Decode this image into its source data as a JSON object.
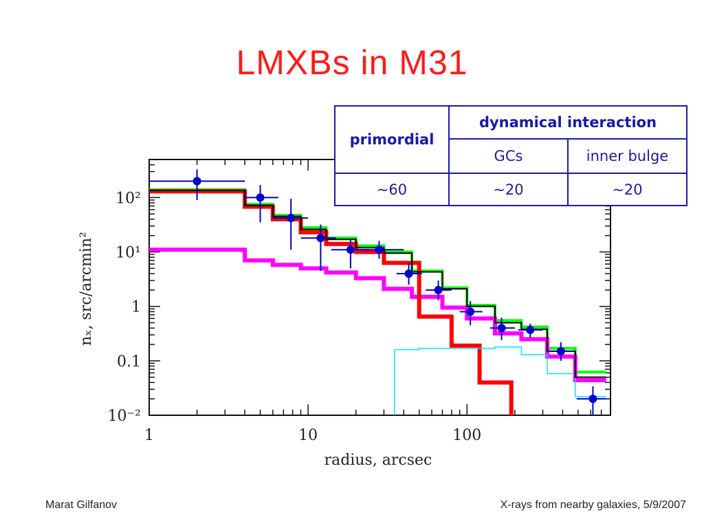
{
  "title": "LMXBs in M31",
  "footer": {
    "author": "Marat Gilfanov",
    "event": "X-rays from nearby galaxies, 5/9/2007"
  },
  "table": {
    "col1_header": "primordial",
    "col2_header": "dynamical interaction",
    "sub_gcs": "GCs",
    "sub_bulge": "inner bulge",
    "val_primordial": "~60",
    "val_gcs": "~20",
    "val_bulge": "~20",
    "colors": {
      "text": "#1a1aa8",
      "border": "#1a1aa8"
    }
  },
  "chart_data": {
    "type": "line",
    "x_scale": "log",
    "y_scale": "log",
    "xlim": [
      1,
      800
    ],
    "ylim": [
      0.01,
      500
    ],
    "xlabel": "radius,  arcsec",
    "ylabel": "nₓ,  src/arcmin²",
    "x_ticks": [
      {
        "value": 1,
        "label": "1"
      },
      {
        "value": 10,
        "label": "10"
      },
      {
        "value": 100,
        "label": "100"
      }
    ],
    "y_ticks": [
      {
        "value": 100,
        "label": "10²"
      },
      {
        "value": 10,
        "label": "10¹"
      },
      {
        "value": 1,
        "label": "1"
      },
      {
        "value": 0.1,
        "label": "0.1"
      },
      {
        "value": 0.01,
        "label": "10⁻²"
      }
    ],
    "series": [
      {
        "style": "step",
        "color": "#00ff00",
        "width": 4,
        "edges": [
          1,
          4,
          6,
          9,
          13,
          20,
          30,
          45,
          70,
          100,
          150,
          220,
          320,
          480,
          750
        ],
        "values": [
          140,
          75,
          47,
          28,
          18,
          13,
          10,
          4.5,
          2.2,
          1.05,
          0.55,
          0.42,
          0.17,
          0.062
        ]
      },
      {
        "style": "step",
        "color": "#ff00ff",
        "width": 6,
        "edges": [
          1,
          4,
          6,
          9,
          13,
          20,
          30,
          45,
          70,
          100,
          150,
          220,
          320,
          480,
          750
        ],
        "values": [
          11,
          7,
          5.8,
          5,
          4.2,
          3.3,
          2.1,
          1.5,
          0.95,
          0.6,
          0.32,
          0.25,
          0.12,
          0.044
        ]
      },
      {
        "style": "step",
        "color": "#ff0000",
        "width": 6,
        "edges": [
          1,
          4,
          6,
          9,
          13,
          20,
          30,
          50,
          80,
          120,
          190
        ],
        "values": [
          130,
          68,
          40,
          23,
          14,
          10,
          6.3,
          0.65,
          0.19,
          0.04
        ],
        "drop_to_floor": true
      },
      {
        "style": "step",
        "color": "#00e5ff",
        "width": 1.5,
        "edges": [
          35,
          50,
          150,
          220,
          320,
          480
        ],
        "values": [
          0.16,
          0.17,
          0.18,
          0.13,
          0.058
        ],
        "start_from_floor": true,
        "tail": [
          480,
          0.058,
          0.022,
          750
        ]
      },
      {
        "style": "step",
        "color": "#000000",
        "width": 2,
        "edges": [
          1,
          4,
          6,
          9,
          13,
          20,
          30,
          45,
          70,
          100,
          150,
          220,
          320,
          480,
          750
        ],
        "values": [
          135,
          72,
          45,
          26,
          17,
          12,
          9.5,
          4.3,
          2.1,
          1.0,
          0.5,
          0.38,
          0.15,
          0.05
        ]
      }
    ],
    "data_points": {
      "color": "#0000cc",
      "points": [
        {
          "x": 2.0,
          "y": 200,
          "xerr": [
            1.0,
            4.0
          ],
          "yerr": [
            90,
            330
          ]
        },
        {
          "x": 5.0,
          "y": 100,
          "xerr": [
            4.0,
            6.5
          ],
          "yerr": [
            35,
            170
          ]
        },
        {
          "x": 7.8,
          "y": 42,
          "xerr": [
            6.0,
            10.0
          ],
          "yerr": [
            11,
            95
          ]
        },
        {
          "x": 12.0,
          "y": 18,
          "xerr": [
            9.0,
            15.0
          ],
          "yerr": [
            4.5,
            32
          ]
        },
        {
          "x": 18.5,
          "y": 11,
          "xerr": [
            14.0,
            24.0
          ],
          "yerr": [
            5,
            17
          ]
        },
        {
          "x": 28.0,
          "y": 11,
          "xerr": [
            22.0,
            40.0
          ],
          "yerr": [
            7.5,
            16
          ]
        },
        {
          "x": 43.0,
          "y": 4.0,
          "xerr": [
            36.0,
            52.0
          ],
          "yerr": [
            2.5,
            6.3
          ]
        },
        {
          "x": 66.0,
          "y": 2.0,
          "xerr": [
            55.0,
            80.0
          ],
          "yerr": [
            1.3,
            3.0
          ]
        },
        {
          "x": 105.0,
          "y": 0.8,
          "xerr": [
            90.0,
            125.0
          ],
          "yerr": [
            0.45,
            1.25
          ]
        },
        {
          "x": 165.0,
          "y": 0.4,
          "xerr": [
            140.0,
            200.0
          ],
          "yerr": [
            0.24,
            0.62
          ]
        },
        {
          "x": 250.0,
          "y": 0.37,
          "xerr": [
            210.0,
            300.0
          ],
          "yerr": [
            0.27,
            0.48
          ]
        },
        {
          "x": 390.0,
          "y": 0.15,
          "xerr": [
            330.0,
            460.0
          ],
          "yerr": [
            0.1,
            0.22
          ]
        },
        {
          "x": 620.0,
          "y": 0.02,
          "xerr": [
            490.0,
            750.0
          ],
          "yerr": [
            0.01,
            0.034
          ]
        }
      ]
    }
  }
}
